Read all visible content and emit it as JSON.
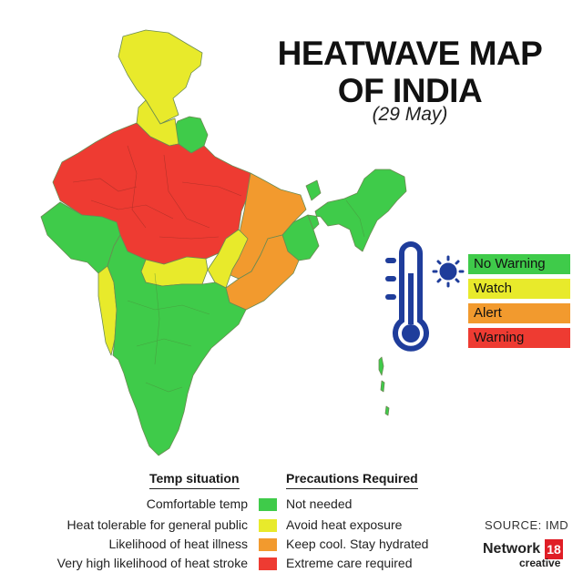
{
  "title_line1": "HEATWAVE MAP",
  "title_line2": "OF INDIA",
  "date": "(29 May)",
  "colors": {
    "no_warning": "#3fcb4a",
    "watch": "#e8ea2b",
    "alert": "#f29a2e",
    "warning": "#ee3b32",
    "outline": "#6a8a52",
    "thermometer": "#1f3d9b"
  },
  "legend": [
    {
      "label": "No Warning",
      "color": "#3fcb4a"
    },
    {
      "label": "Watch",
      "color": "#e8ea2b"
    },
    {
      "label": "Alert",
      "color": "#f29a2e"
    },
    {
      "label": "Warning",
      "color": "#ee3b32"
    }
  ],
  "table": {
    "header_situation": "Temp situation",
    "header_precautions": "Precautions Required",
    "rows": [
      {
        "situation": "Comfortable temp",
        "precaution": "Not needed",
        "color": "#3fcb4a"
      },
      {
        "situation": "Heat tolerable for general public",
        "precaution": "Avoid heat exposure",
        "color": "#e8ea2b"
      },
      {
        "situation": "Likelihood of heat illness",
        "precaution": "Keep cool. Stay hydrated",
        "color": "#f29a2e"
      },
      {
        "situation": "Very high likelihood of heat stroke",
        "precaution": "Extreme care required",
        "color": "#ee3b32"
      }
    ]
  },
  "source": "SOURCE: IMD",
  "logo": {
    "network": "Network",
    "badge": "18",
    "creative": "creative"
  },
  "icons": [
    "thermometer-icon",
    "sun-icon"
  ]
}
